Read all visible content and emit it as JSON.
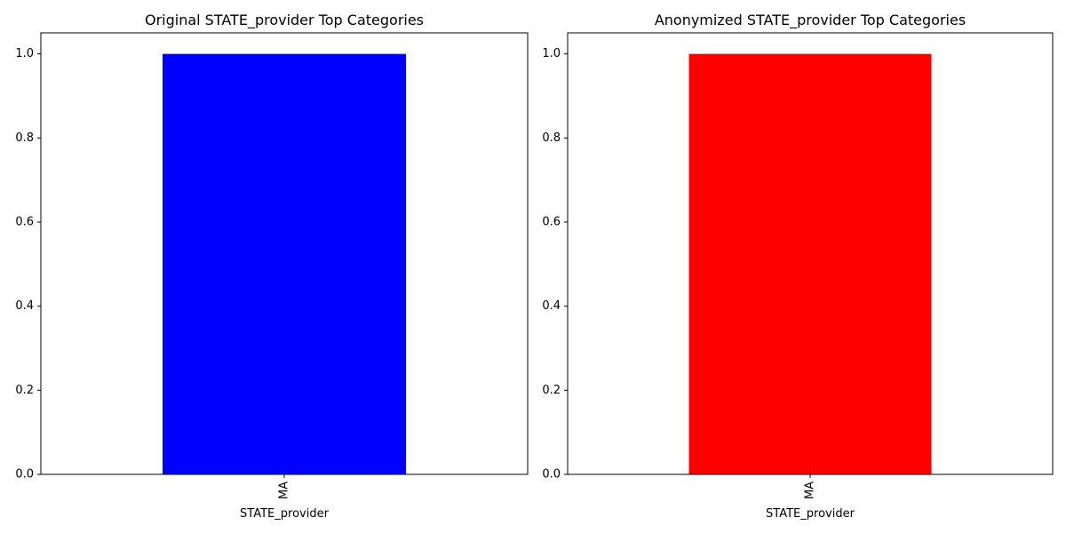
{
  "chart_data": [
    {
      "type": "bar",
      "title": "Original STATE_provider Top Categories",
      "xlabel": "STATE_provider",
      "ylabel": "",
      "categories": [
        "MA"
      ],
      "values": [
        1.0
      ],
      "color": "#0000ff",
      "ylim": [
        0,
        1.05
      ],
      "yticks": [
        0.0,
        0.2,
        0.4,
        0.6,
        0.8,
        1.0
      ],
      "ytick_labels": [
        "0.0",
        "0.2",
        "0.4",
        "0.6",
        "0.8",
        "1.0"
      ],
      "grid": false,
      "legend": "none"
    },
    {
      "type": "bar",
      "title": "Anonymized STATE_provider Top Categories",
      "xlabel": "STATE_provider",
      "ylabel": "",
      "categories": [
        "MA"
      ],
      "values": [
        1.0
      ],
      "color": "#ff0000",
      "ylim": [
        0,
        1.05
      ],
      "yticks": [
        0.0,
        0.2,
        0.4,
        0.6,
        0.8,
        1.0
      ],
      "ytick_labels": [
        "0.0",
        "0.2",
        "0.4",
        "0.6",
        "0.8",
        "1.0"
      ],
      "grid": false,
      "legend": "none"
    }
  ]
}
